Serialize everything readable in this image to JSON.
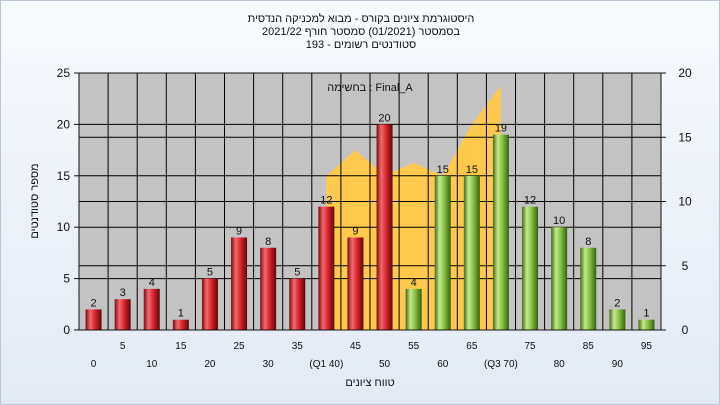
{
  "chart_data": {
    "type": "bar",
    "title_lines": [
      "היסטוגרמת ציונים בקורס - מבוא למכניקה הנדסית",
      "בסמסטר  (01/2021)  סמסטר חורף 2021/22",
      "סטודנטים רשומים - 193"
    ],
    "annotation": "בחשימה : Final_A",
    "ylabel": "מספר סטודנטים",
    "xlabel": "טווח ציונים",
    "ylim": [
      0,
      25
    ],
    "y_ticks": [
      "0",
      "5",
      "10",
      "15",
      "20",
      "25"
    ],
    "y2lim": [
      0,
      20
    ],
    "y2_ticks": [
      "0",
      "5",
      "10",
      "15",
      "20"
    ],
    "categories": [
      "0",
      "5",
      "10",
      "15",
      "20",
      "25",
      "30",
      "35",
      "40",
      "45",
      "50",
      "55",
      "60",
      "65",
      "70",
      "75",
      "80",
      "85",
      "90",
      "95"
    ],
    "category_labels": [
      "0",
      "5",
      "10",
      "15",
      "20",
      "25",
      "30",
      "35",
      "(Q1 40)",
      "45",
      "50",
      "55",
      "60",
      "65",
      "(Q3 70)",
      "75",
      "80",
      "85",
      "90",
      "95"
    ],
    "values": [
      2,
      3,
      4,
      1,
      5,
      9,
      8,
      5,
      12,
      9,
      20,
      4,
      15,
      15,
      19,
      12,
      10,
      8,
      2,
      1
    ],
    "data_labels": [
      "2",
      "3",
      "4",
      "1",
      "5",
      "9",
      "8",
      "5",
      "12",
      "9",
      "20",
      "4",
      "15",
      "15",
      "19",
      "12",
      "10",
      "8",
      "2",
      "1"
    ],
    "bar_colors": [
      "red",
      "red",
      "red",
      "red",
      "red",
      "red",
      "red",
      "red",
      "red",
      "red",
      "red",
      "green",
      "green",
      "green",
      "green",
      "green",
      "green",
      "green",
      "green",
      "green"
    ],
    "area_series": {
      "axis": "secondary",
      "range": [
        "40",
        "70"
      ],
      "values": [
        12,
        14,
        12,
        13,
        12,
        16,
        19
      ]
    },
    "grid": true,
    "colors": {
      "red_bar": "#d8242c",
      "green_bar": "#86c043",
      "area": "#ffc94d",
      "plot_bg": "#c3c3c3",
      "grid": "#000000"
    }
  }
}
